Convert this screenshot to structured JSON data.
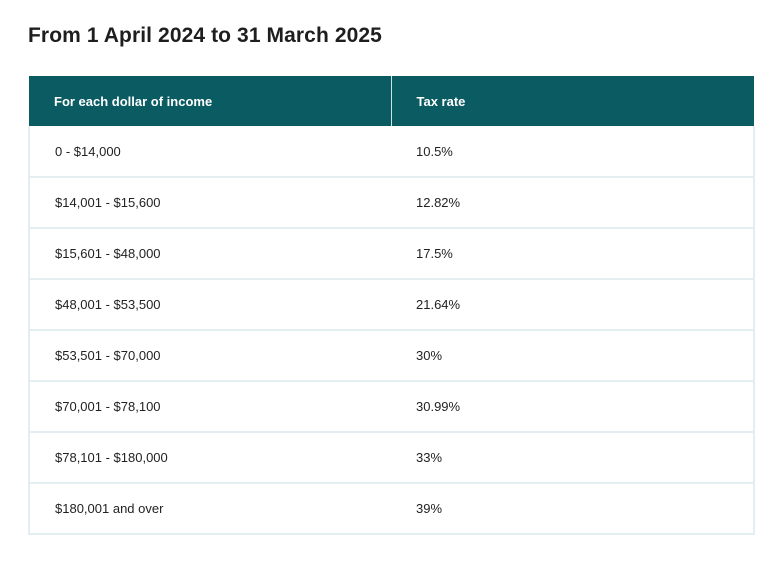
{
  "heading": "From 1 April 2024 to 31 March 2025",
  "table": {
    "headers": [
      "For each dollar of income",
      "Tax rate"
    ],
    "rows": [
      {
        "income": "0 - $14,000",
        "rate": "10.5%"
      },
      {
        "income": "$14,001 - $15,600",
        "rate": "12.82%"
      },
      {
        "income": "$15,601 - $48,000",
        "rate": "17.5%"
      },
      {
        "income": "$48,001 - $53,500",
        "rate": "21.64%"
      },
      {
        "income": "$53,501 - $70,000",
        "rate": "30%"
      },
      {
        "income": "$70,001 - $78,100",
        "rate": "30.99%"
      },
      {
        "income": "$78,101 - $180,000",
        "rate": "33%"
      },
      {
        "income": "$180,001 and over",
        "rate": "39%"
      }
    ]
  },
  "colors": {
    "header_background": "#0b5b63",
    "header_text": "#ffffff",
    "row_border": "#e3eef2"
  }
}
